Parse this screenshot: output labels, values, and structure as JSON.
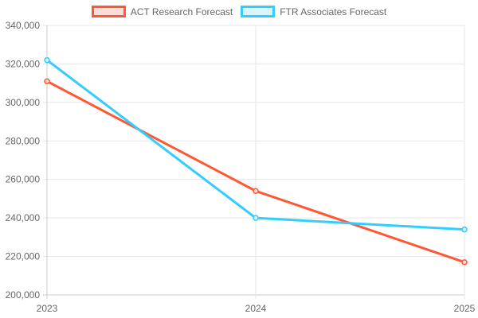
{
  "chart_data": {
    "type": "line",
    "categories": [
      "2023",
      "2024",
      "2025"
    ],
    "series": [
      {
        "name": "ACT Research Forecast",
        "values": [
          311000,
          254000,
          217000
        ],
        "color": "#ff5733",
        "fill": "#ffdcd6"
      },
      {
        "name": "FTR Associates Forecast",
        "values": [
          322000,
          240000,
          234000
        ],
        "color": "#33ccff",
        "fill": "#d6f5ff"
      }
    ],
    "ylim": [
      200000,
      340000
    ],
    "yticks": [
      "200,000",
      "220,000",
      "240,000",
      "260,000",
      "280,000",
      "300,000",
      "320,000",
      "340,000"
    ],
    "grid": true,
    "legend": "top-center"
  }
}
